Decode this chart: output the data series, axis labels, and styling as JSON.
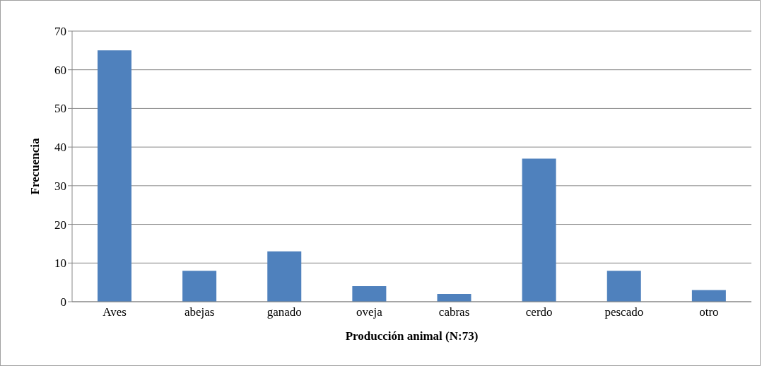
{
  "chart_data": {
    "type": "bar",
    "xlabel": "Producción animal (N:73)",
    "ylabel": "Frecuencia",
    "categories": [
      "Aves",
      "abejas",
      "ganado",
      "oveja",
      "cabras",
      "cerdo",
      "pescado",
      "otro"
    ],
    "values": [
      65,
      8,
      13,
      4,
      2,
      37,
      8,
      3
    ],
    "color": "#4f81bd",
    "ylim": [
      0,
      70
    ],
    "yticks": [
      0,
      10,
      20,
      30,
      40,
      50,
      60,
      70
    ],
    "grid": "y",
    "legend": false
  }
}
